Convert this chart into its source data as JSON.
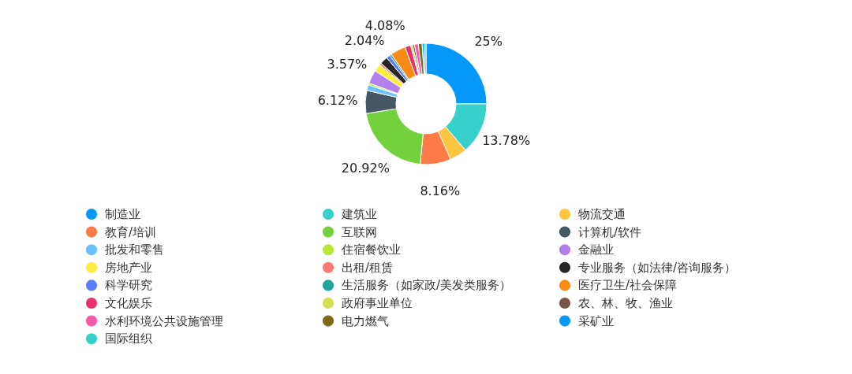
{
  "chart_data": {
    "type": "donut",
    "categories": [
      "制造业",
      "建筑业",
      "物流交通",
      "教育/培训",
      "互联网",
      "计算机/软件",
      "批发和零售",
      "住宿餐饮业",
      "金融业",
      "房地产业",
      "出租/租赁",
      "专业服务（如法律/咨询服务）",
      "科学研究",
      "生活服务（如家政/美发类服务）",
      "医疗卫生/社会保障",
      "文化娱乐",
      "政府事业单位",
      "农、林、牧、渔业",
      "水利环境公共设施管理",
      "电力燃气",
      "采矿业",
      "国际组织"
    ],
    "values": [
      25,
      13.78,
      4.59,
      8.16,
      20.92,
      6.12,
      1.53,
      0.51,
      3.57,
      2.04,
      0.51,
      2.04,
      1.02,
      0.51,
      4.08,
      1.53,
      0.51,
      0.51,
      1.02,
      1.02,
      0.51,
      0.51
    ],
    "value_labels": [
      "25%",
      "13.78%",
      null,
      "8.16%",
      "20.92%",
      "6.12%",
      null,
      null,
      "3.57%",
      null,
      null,
      "2.04%",
      null,
      null,
      "4.08%",
      null,
      null,
      null,
      null,
      null,
      null,
      null
    ],
    "colors": [
      "#0698f9",
      "#37d0ca",
      "#fcc63f",
      "#fe7b47",
      "#73d13d",
      "#455762",
      "#69c0ff",
      "#bae637",
      "#b37feb",
      "#ffec3d",
      "#ff7875",
      "#262626",
      "#5b7bfa",
      "#22a598",
      "#fa8c16",
      "#eb2f6e",
      "#d3e04f",
      "#7a5446",
      "#f759ab",
      "#7d6c13",
      "#0698f9",
      "#37d0ca"
    ],
    "legend": "bottom"
  }
}
